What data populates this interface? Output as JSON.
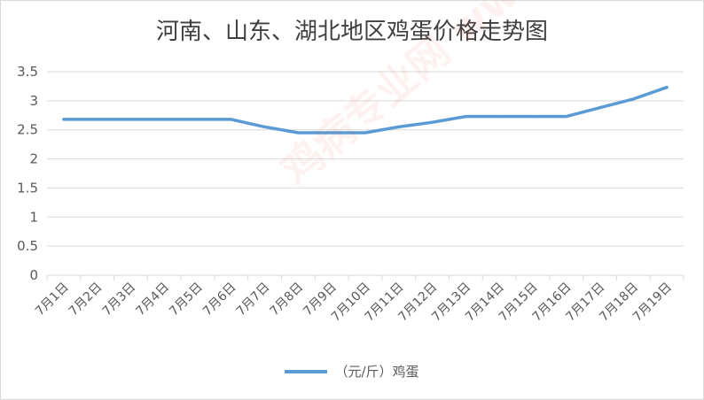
{
  "colors": {
    "series": "#5b9bd5",
    "grid": "#d9d9d9",
    "axis_text": "#595959"
  },
  "chart_data": {
    "type": "line",
    "title": "河南、山东、湖北地区鸡蛋价格走势图",
    "xlabel": "",
    "ylabel": "",
    "categories": [
      "7月1日",
      "7月2日",
      "7月3日",
      "7月4日",
      "7月5日",
      "7月6日",
      "7月7日",
      "7月8日",
      "7月9日",
      "7月10日",
      "7月11日",
      "7月12日",
      "7月13日",
      "7月14日",
      "7月15日",
      "7月16日",
      "7月17日",
      "7月18日",
      "7月19日"
    ],
    "ylim": [
      0,
      3.5
    ],
    "yticks": [
      "0",
      "0.5",
      "1",
      "1.5",
      "2",
      "2.5",
      "3",
      "3.5"
    ],
    "grid": true,
    "legend_position": "bottom",
    "series": [
      {
        "name": "（元/斤）鸡蛋",
        "values": [
          2.68,
          2.68,
          2.68,
          2.68,
          2.68,
          2.68,
          2.55,
          2.45,
          2.45,
          2.45,
          2.55,
          2.63,
          2.73,
          2.73,
          2.73,
          2.73,
          2.88,
          3.03,
          3.23
        ]
      }
    ],
    "watermark": "鸡病专业网 www.jbzyw.com"
  }
}
